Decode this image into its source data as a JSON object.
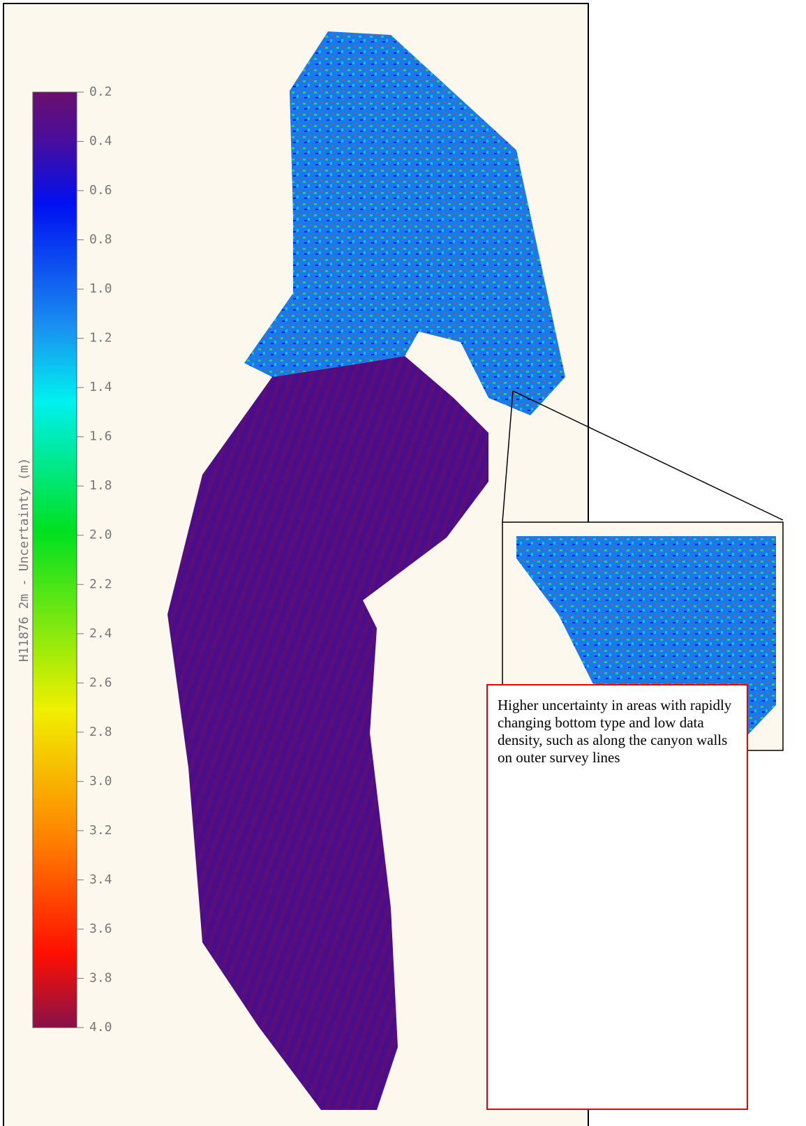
{
  "colorbar": {
    "label": "H11876 2m - Uncertainty (m)",
    "lim": [
      0.2,
      4
    ],
    "ticks": [
      0.2,
      0.4,
      0.6,
      0.8,
      {
        "value": 1,
        "label": "1.0"
      },
      1.2,
      1.4,
      1.6,
      1.8,
      {
        "value": 2,
        "label": "2.0"
      },
      2.2,
      2.4,
      2.6,
      2.8,
      {
        "value": 3,
        "label": "3.0"
      },
      3.2,
      3.4,
      3.6,
      3.8,
      {
        "value": 4,
        "label": "4.0"
      }
    ]
  },
  "annotation": {
    "text": "Higher uncertainty in areas with rapidly changing bottom type and low data density, such as along the canyon walls on outer survey lines"
  }
}
